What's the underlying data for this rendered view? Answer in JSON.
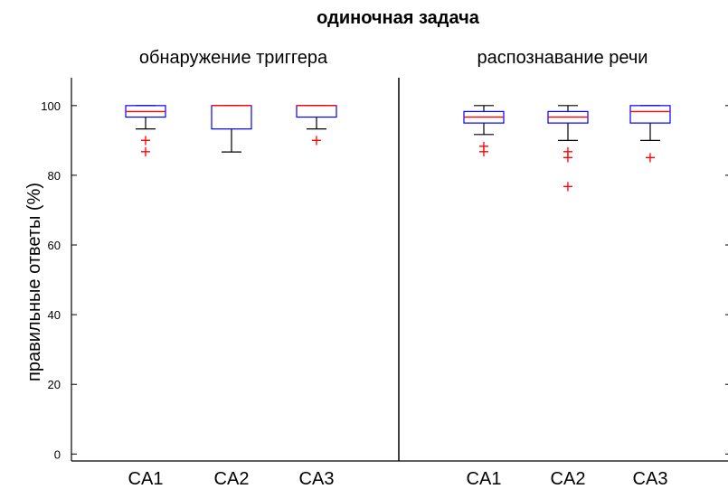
{
  "chart_data": {
    "type": "box",
    "title": "одиночная задача",
    "ylabel": "правильные ответы (%)",
    "ylim": [
      -2,
      108
    ],
    "yticks": [
      "0",
      "20",
      "40",
      "60",
      "80",
      "100"
    ],
    "colors": {
      "box": "#0000ff",
      "median": "#ff0000",
      "whisker": "#000000",
      "outlier": "#ff0000"
    },
    "panels": [
      {
        "subtitle": "обнаружение триггера",
        "categories": [
          "CA1",
          "CA2",
          "CA3"
        ],
        "boxes": [
          {
            "lower_whisker": 93.3,
            "q1": 96.7,
            "median": 98.3,
            "q3": 100,
            "upper_whisker": 100,
            "outliers": [
              90,
              86.7
            ]
          },
          {
            "lower_whisker": 86.7,
            "q1": 93.3,
            "median": 100,
            "q3": 100,
            "upper_whisker": 100,
            "outliers": []
          },
          {
            "lower_whisker": 93.3,
            "q1": 96.7,
            "median": 100,
            "q3": 100,
            "upper_whisker": 100,
            "outliers": [
              90
            ]
          }
        ]
      },
      {
        "subtitle": "распознавание речи",
        "categories": [
          "CA1",
          "CA2",
          "CA3"
        ],
        "boxes": [
          {
            "lower_whisker": 91.7,
            "q1": 95,
            "median": 96.7,
            "q3": 98.3,
            "upper_whisker": 100,
            "outliers": [
              88.3,
              86.7
            ]
          },
          {
            "lower_whisker": 90,
            "q1": 95,
            "median": 96.7,
            "q3": 98.3,
            "upper_whisker": 100,
            "outliers": [
              86.7,
              85,
              76.7
            ]
          },
          {
            "lower_whisker": 90,
            "q1": 95,
            "median": 98.3,
            "q3": 100,
            "upper_whisker": 100,
            "outliers": [
              85
            ]
          }
        ]
      }
    ]
  }
}
